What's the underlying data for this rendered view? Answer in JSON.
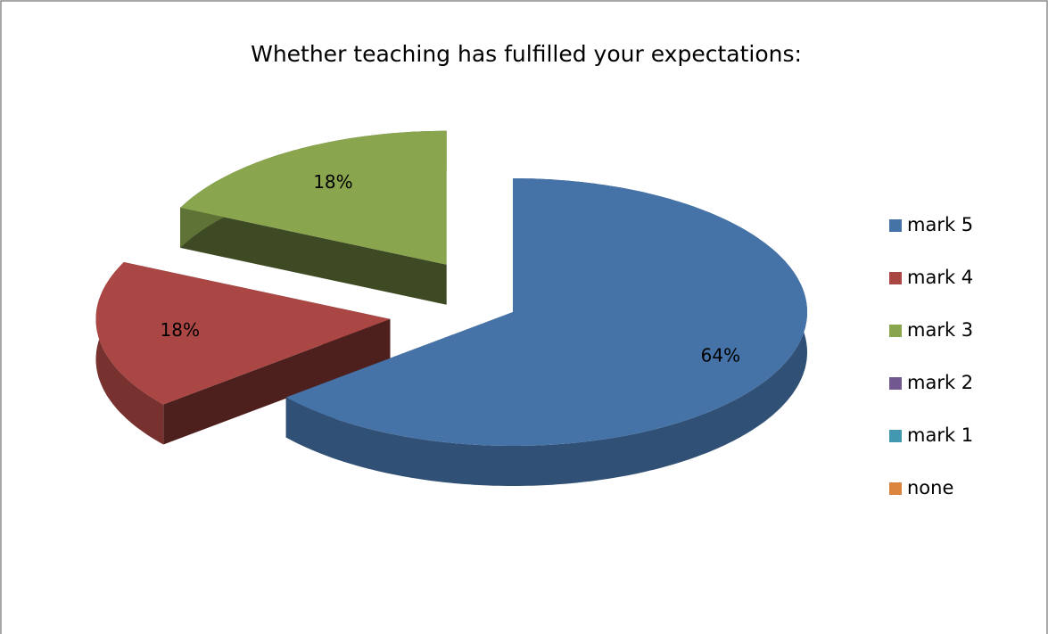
{
  "chart_data": {
    "type": "pie",
    "title": "Whether teaching has fulfilled your expectations:",
    "categories": [
      "mark 5",
      "mark 4",
      "mark 3",
      "mark 2",
      "mark 1",
      "none"
    ],
    "values": [
      64,
      18,
      18,
      0,
      0,
      0
    ],
    "value_labels": [
      "64%",
      "18%",
      "18%",
      null,
      null,
      null
    ],
    "colors": [
      "#4572a7",
      "#aa4643",
      "#89a54e",
      "#71588f",
      "#4198af",
      "#db843d"
    ],
    "legend": "right"
  }
}
